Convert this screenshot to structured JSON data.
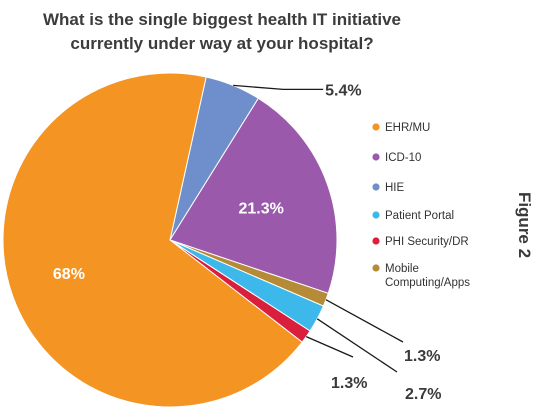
{
  "chart_data": {
    "type": "pie",
    "title": [
      "What is the single biggest health IT initiative",
      "currently under way at your hospital?"
    ],
    "categories": [
      "EHR/MU",
      "ICD-10",
      "HIE",
      "Patient Portal",
      "PHI Security/DR",
      "Mobile Computing/Apps"
    ],
    "legend_labels": [
      "EHR/MU",
      "ICD-10",
      "HIE",
      "Patient Portal",
      "PHI Security/DR",
      [
        "Mobile",
        "Computing/Apps"
      ]
    ],
    "values": [
      68,
      21.3,
      5.4,
      2.7,
      1.3,
      1.3
    ],
    "value_labels": [
      "68%",
      "21.3%",
      "5.4%",
      "2.7%",
      "1.3%",
      "1.3%"
    ],
    "colors": [
      "#F39423",
      "#9B59AC",
      "#6E8FCB",
      "#3CB9EA",
      "#DA1F3D",
      "#B58B37"
    ],
    "legend_position": "right"
  },
  "side_label": "Figure 2"
}
